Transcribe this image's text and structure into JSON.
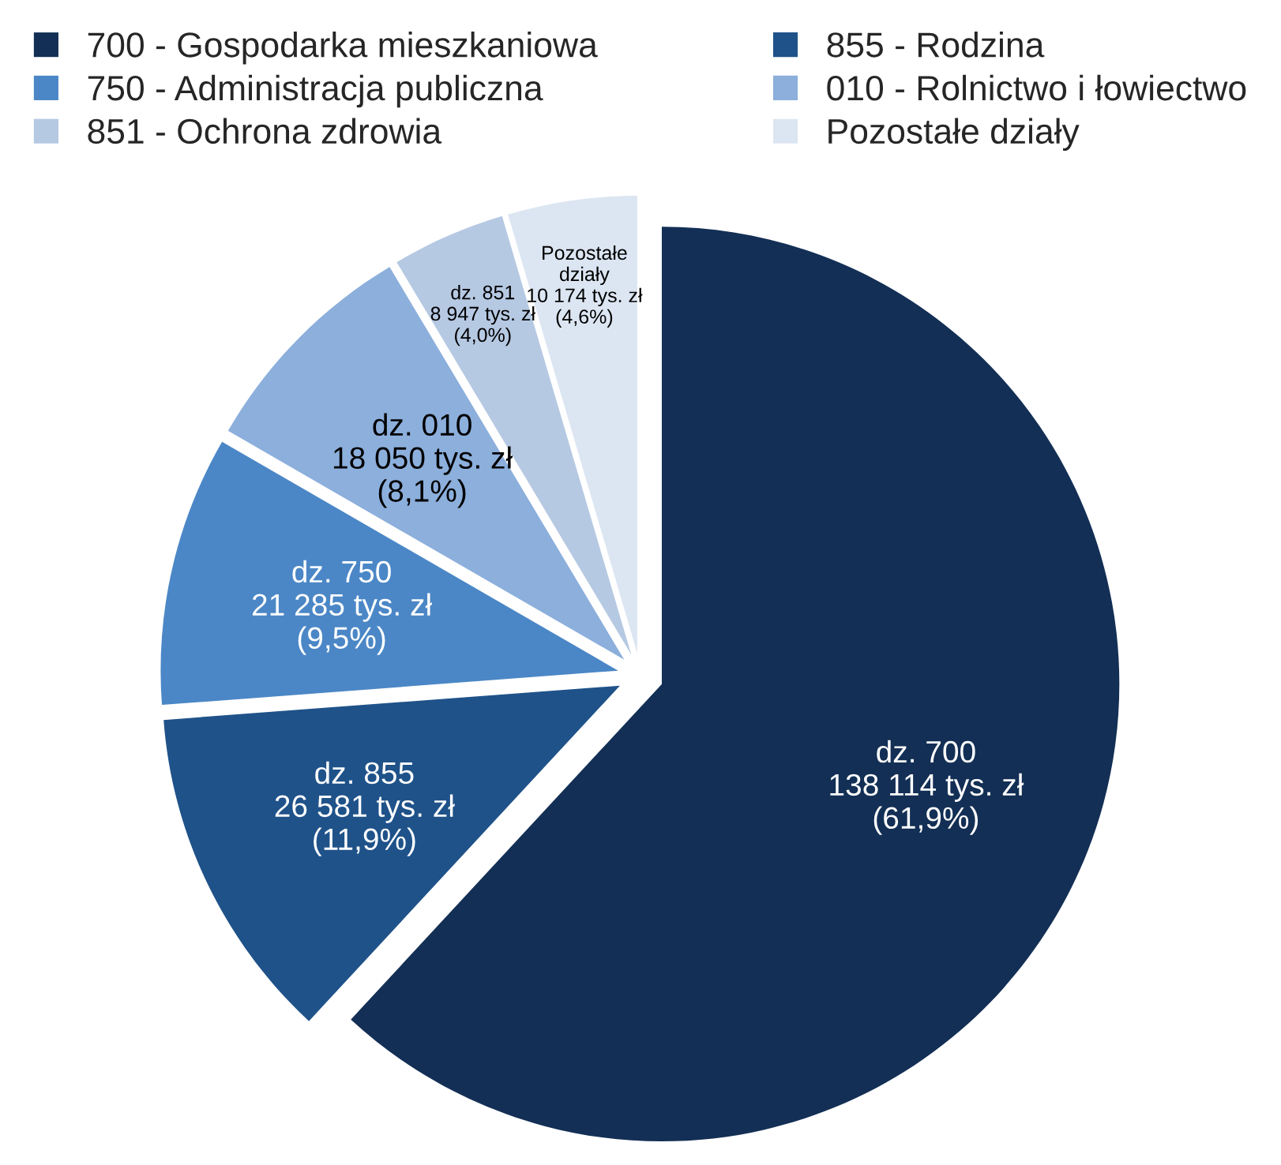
{
  "chart_data": {
    "type": "pie",
    "categories": [
      "700 - Gospodarka mieszkaniowa",
      "855 - Rodzina",
      "750 - Administracja publiczna",
      "010 - Rolnictwo i łowiectwo",
      "851 - Ochrona zdrowia",
      "Pozostałe działy"
    ],
    "values": [
      138114,
      26581,
      21285,
      18050,
      8947,
      10174
    ],
    "colors": [
      "#132f55",
      "#1f5289",
      "#4b87c6",
      "#8cafdc",
      "#b6c9e3",
      "#dce6f2"
    ],
    "value_labels": [
      "dz. 700\n138 114 tys. zł\n(61,9%)",
      "dz. 855\n26 581 tys. zł\n(11,9%)",
      "dz. 750\n21 285 tys. zł\n(9,5%)",
      "dz. 010\n18 050 tys. zł\n(8,1%)",
      "dz. 851\n8 947 tys. zł\n(4,0%)",
      "Pozostałe\ndziały\n10 174 tys. zł\n(4,6%)"
    ],
    "legend": "top"
  }
}
